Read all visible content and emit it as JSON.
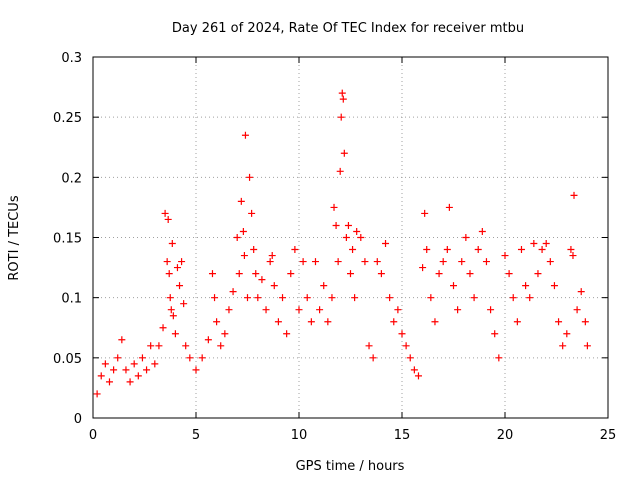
{
  "chart_data": {
    "type": "scatter",
    "title": "Day 261 of 2024, Rate Of TEC Index for receiver mtbu",
    "xlabel": "GPS time / hours",
    "ylabel": "ROTI / TECUs",
    "xlim": [
      0,
      25
    ],
    "ylim": [
      0,
      0.3
    ],
    "x_ticks": [
      0,
      5,
      10,
      15,
      20,
      25
    ],
    "y_ticks": [
      0,
      0.05,
      0.1,
      0.15,
      0.2,
      0.25,
      0.3
    ],
    "x_tick_labels": [
      "0",
      "5",
      "10",
      "15",
      "20",
      "25"
    ],
    "y_tick_labels": [
      "0",
      "0.05",
      "0.1",
      "0.15",
      "0.2",
      "0.25",
      "0.3"
    ],
    "grid": true,
    "marker": "+",
    "color": "#ff0000",
    "series": [
      {
        "name": "ROTI",
        "points": [
          [
            0.2,
            0.02
          ],
          [
            0.4,
            0.035
          ],
          [
            0.6,
            0.045
          ],
          [
            0.8,
            0.03
          ],
          [
            1.0,
            0.04
          ],
          [
            1.2,
            0.05
          ],
          [
            1.4,
            0.065
          ],
          [
            1.6,
            0.04
          ],
          [
            1.8,
            0.03
          ],
          [
            2.0,
            0.045
          ],
          [
            2.2,
            0.035
          ],
          [
            2.4,
            0.05
          ],
          [
            2.6,
            0.04
          ],
          [
            2.8,
            0.06
          ],
          [
            3.0,
            0.045
          ],
          [
            3.2,
            0.06
          ],
          [
            3.4,
            0.075
          ],
          [
            3.5,
            0.17
          ],
          [
            3.6,
            0.13
          ],
          [
            3.65,
            0.165
          ],
          [
            3.7,
            0.12
          ],
          [
            3.75,
            0.1
          ],
          [
            3.8,
            0.09
          ],
          [
            3.85,
            0.145
          ],
          [
            3.9,
            0.085
          ],
          [
            4.0,
            0.07
          ],
          [
            4.1,
            0.125
          ],
          [
            4.2,
            0.11
          ],
          [
            4.3,
            0.13
          ],
          [
            4.4,
            0.095
          ],
          [
            4.5,
            0.06
          ],
          [
            4.7,
            0.05
          ],
          [
            5.0,
            0.04
          ],
          [
            5.3,
            0.05
          ],
          [
            5.6,
            0.065
          ],
          [
            5.8,
            0.12
          ],
          [
            5.9,
            0.1
          ],
          [
            6.0,
            0.08
          ],
          [
            6.2,
            0.06
          ],
          [
            6.4,
            0.07
          ],
          [
            6.6,
            0.09
          ],
          [
            6.8,
            0.105
          ],
          [
            7.0,
            0.15
          ],
          [
            7.1,
            0.12
          ],
          [
            7.2,
            0.18
          ],
          [
            7.3,
            0.155
          ],
          [
            7.35,
            0.135
          ],
          [
            7.4,
            0.235
          ],
          [
            7.5,
            0.1
          ],
          [
            7.6,
            0.2
          ],
          [
            7.7,
            0.17
          ],
          [
            7.8,
            0.14
          ],
          [
            7.9,
            0.12
          ],
          [
            8.0,
            0.1
          ],
          [
            8.2,
            0.115
          ],
          [
            8.4,
            0.09
          ],
          [
            8.6,
            0.13
          ],
          [
            8.7,
            0.135
          ],
          [
            8.8,
            0.11
          ],
          [
            9.0,
            0.08
          ],
          [
            9.2,
            0.1
          ],
          [
            9.4,
            0.07
          ],
          [
            9.6,
            0.12
          ],
          [
            9.8,
            0.14
          ],
          [
            10.0,
            0.09
          ],
          [
            10.2,
            0.13
          ],
          [
            10.4,
            0.1
          ],
          [
            10.6,
            0.08
          ],
          [
            10.8,
            0.13
          ],
          [
            11.0,
            0.09
          ],
          [
            11.2,
            0.11
          ],
          [
            11.4,
            0.08
          ],
          [
            11.6,
            0.1
          ],
          [
            11.7,
            0.175
          ],
          [
            11.8,
            0.16
          ],
          [
            11.9,
            0.13
          ],
          [
            12.0,
            0.205
          ],
          [
            12.05,
            0.25
          ],
          [
            12.1,
            0.27
          ],
          [
            12.15,
            0.265
          ],
          [
            12.2,
            0.22
          ],
          [
            12.3,
            0.15
          ],
          [
            12.4,
            0.16
          ],
          [
            12.5,
            0.12
          ],
          [
            12.6,
            0.14
          ],
          [
            12.7,
            0.1
          ],
          [
            12.8,
            0.155
          ],
          [
            13.0,
            0.15
          ],
          [
            13.2,
            0.13
          ],
          [
            13.4,
            0.06
          ],
          [
            13.6,
            0.05
          ],
          [
            13.8,
            0.13
          ],
          [
            14.0,
            0.12
          ],
          [
            14.2,
            0.145
          ],
          [
            14.4,
            0.1
          ],
          [
            14.6,
            0.08
          ],
          [
            14.8,
            0.09
          ],
          [
            15.0,
            0.07
          ],
          [
            15.2,
            0.06
          ],
          [
            15.4,
            0.05
          ],
          [
            15.6,
            0.04
          ],
          [
            15.8,
            0.035
          ],
          [
            16.0,
            0.125
          ],
          [
            16.1,
            0.17
          ],
          [
            16.2,
            0.14
          ],
          [
            16.4,
            0.1
          ],
          [
            16.6,
            0.08
          ],
          [
            16.8,
            0.12
          ],
          [
            17.0,
            0.13
          ],
          [
            17.2,
            0.14
          ],
          [
            17.3,
            0.175
          ],
          [
            17.5,
            0.11
          ],
          [
            17.7,
            0.09
          ],
          [
            17.9,
            0.13
          ],
          [
            18.1,
            0.15
          ],
          [
            18.3,
            0.12
          ],
          [
            18.5,
            0.1
          ],
          [
            18.7,
            0.14
          ],
          [
            18.9,
            0.155
          ],
          [
            19.1,
            0.13
          ],
          [
            19.3,
            0.09
          ],
          [
            19.5,
            0.07
          ],
          [
            19.7,
            0.05
          ],
          [
            20.0,
            0.135
          ],
          [
            20.2,
            0.12
          ],
          [
            20.4,
            0.1
          ],
          [
            20.6,
            0.08
          ],
          [
            20.8,
            0.14
          ],
          [
            21.0,
            0.11
          ],
          [
            21.2,
            0.1
          ],
          [
            21.4,
            0.145
          ],
          [
            21.6,
            0.12
          ],
          [
            21.8,
            0.14
          ],
          [
            22.0,
            0.145
          ],
          [
            22.2,
            0.13
          ],
          [
            22.4,
            0.11
          ],
          [
            22.6,
            0.08
          ],
          [
            22.8,
            0.06
          ],
          [
            23.0,
            0.07
          ],
          [
            23.2,
            0.14
          ],
          [
            23.3,
            0.135
          ],
          [
            23.35,
            0.185
          ],
          [
            23.5,
            0.09
          ],
          [
            23.7,
            0.105
          ],
          [
            23.9,
            0.08
          ],
          [
            24.0,
            0.06
          ]
        ]
      }
    ]
  }
}
